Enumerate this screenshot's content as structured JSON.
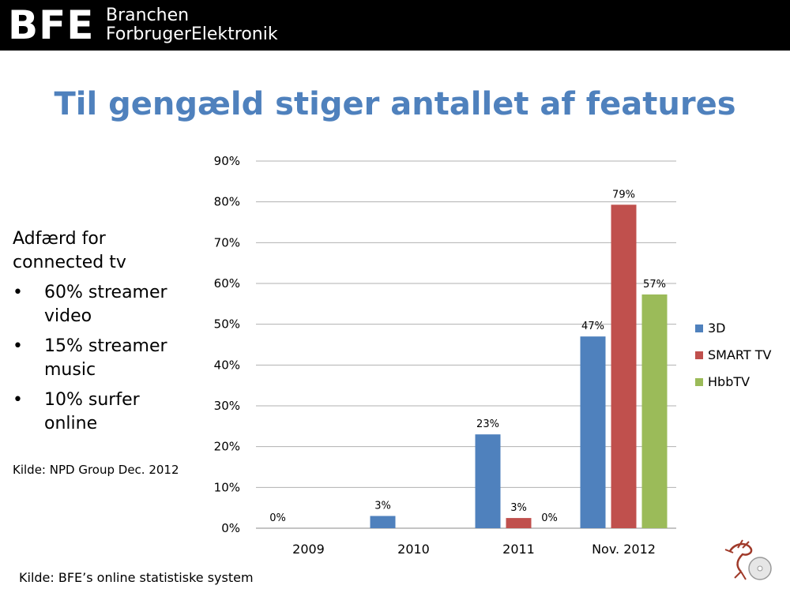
{
  "header": {
    "logo_main": "BFE",
    "logo_line1": "Branchen",
    "logo_line2": "ForbrugerElektronik"
  },
  "slide_title": "Til gengæld stiger antallet af features",
  "sidebar": {
    "heading_line1": "Adfærd for",
    "heading_line2": "connected tv",
    "bullets": [
      {
        "line1": "60% streamer",
        "line2": "video"
      },
      {
        "line1": "15% streamer",
        "line2": "music"
      },
      {
        "line1": "10% surfer",
        "line2": "online"
      }
    ],
    "source": "Kilde: NPD Group Dec. 2012"
  },
  "footer_source": "Kilde: BFE’s online statistiske system",
  "colors": {
    "title": "#4f81bd",
    "series_3d": "#4f81bd",
    "series_smart": "#c0504d",
    "series_hbb": "#9bbb59"
  },
  "chart_data": {
    "type": "bar",
    "categories": [
      "2009",
      "2010",
      "2011",
      "Nov. 2012"
    ],
    "series": [
      {
        "name": "3D",
        "values": [
          0,
          3,
          23,
          47
        ],
        "labels": [
          "0%",
          "3%",
          "23%",
          "47%"
        ],
        "color": "#4f81bd"
      },
      {
        "name": "SMART TV",
        "values": [
          0,
          0,
          2.5,
          79.3
        ],
        "labels": [
          null,
          null,
          "3%",
          "79%"
        ],
        "color": "#c0504d"
      },
      {
        "name": "HbbTV",
        "values": [
          0,
          0,
          0,
          57.3
        ],
        "labels": [
          null,
          null,
          "0%",
          "57%"
        ],
        "color": "#9bbb59"
      }
    ],
    "ylim": [
      0,
      90
    ],
    "yticks": [
      0,
      10,
      20,
      30,
      40,
      50,
      60,
      70,
      80,
      90
    ],
    "ytick_labels": [
      "0%",
      "10%",
      "20%",
      "30%",
      "40%",
      "50%",
      "60%",
      "70%",
      "80%",
      "90%"
    ],
    "grid": true,
    "legend_position": "right"
  }
}
